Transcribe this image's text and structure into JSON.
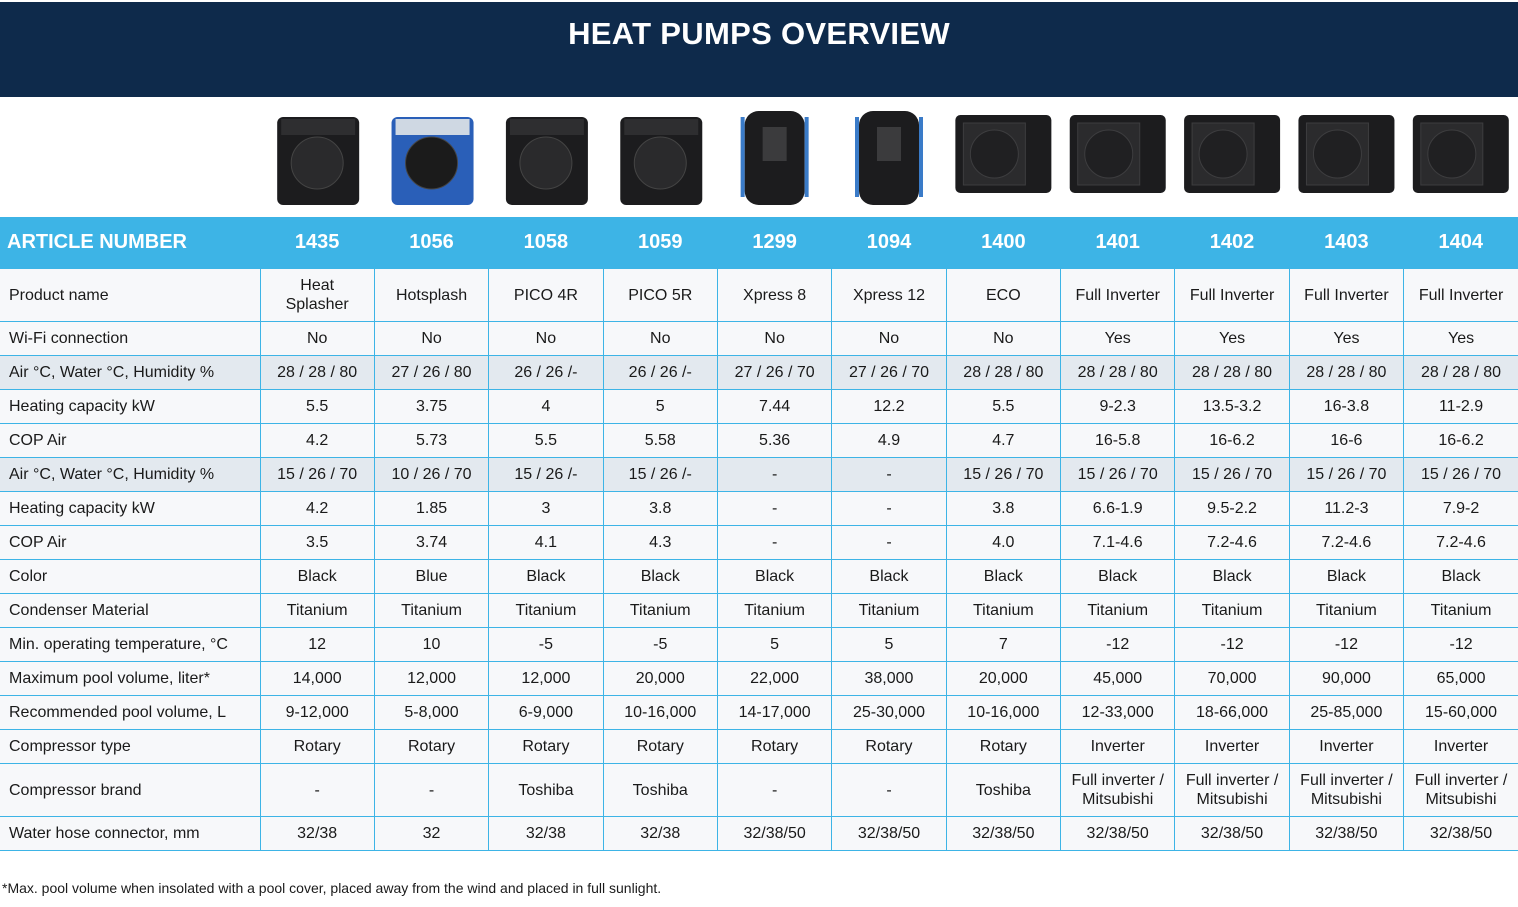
{
  "header": {
    "title": "HEAT PUMPS OVERVIEW"
  },
  "table": {
    "header": [
      "ARTICLE NUMBER",
      "1435",
      "1056",
      "1058",
      "1059",
      "1299",
      "1094",
      "1400",
      "1401",
      "1402",
      "1403",
      "1404"
    ],
    "rows": [
      [
        "Product name",
        "Heat Splasher",
        "Hotsplash",
        "PICO 4R",
        "PICO 5R",
        "Xpress 8",
        "Xpress 12",
        "ECO",
        "Full Inverter",
        "Full Inverter",
        "Full Inverter",
        "Full Inverter"
      ],
      [
        "Wi-Fi connection",
        "No",
        "No",
        "No",
        "No",
        "No",
        "No",
        "No",
        "Yes",
        "Yes",
        "Yes",
        "Yes"
      ],
      [
        "Air °C, Water °C, Humidity %",
        "28 / 28 / 80",
        "27 / 26 / 80",
        "26 / 26 /-",
        "26 / 26 /-",
        "27 / 26 / 70",
        "27 / 26 / 70",
        "28 / 28 / 80",
        "28 / 28 / 80",
        "28 / 28 / 80",
        "28 / 28 / 80",
        "28 / 28 / 80"
      ],
      [
        "Heating capacity kW",
        "5.5",
        "3.75",
        "4",
        "5",
        "7.44",
        "12.2",
        "5.5",
        "9-2.3",
        "13.5-3.2",
        "16-3.8",
        "11-2.9"
      ],
      [
        "COP Air",
        "4.2",
        "5.73",
        "5.5",
        "5.58",
        "5.36",
        "4.9",
        "4.7",
        "16-5.8",
        "16-6.2",
        "16-6",
        "16-6.2"
      ],
      [
        "Air °C, Water °C, Humidity %",
        "15 / 26 / 70",
        "10 / 26 / 70",
        "15 / 26 /-",
        "15 / 26 /-",
        "-",
        "-",
        "15 / 26 / 70",
        "15 / 26 / 70",
        "15 / 26 / 70",
        "15 / 26 / 70",
        "15 / 26 / 70"
      ],
      [
        "Heating capacity kW",
        "4.2",
        "1.85",
        "3",
        "3.8",
        "-",
        "-",
        "3.8",
        "6.6-1.9",
        "9.5-2.2",
        "11.2-3",
        "7.9-2"
      ],
      [
        "COP Air",
        "3.5",
        "3.74",
        "4.1",
        "4.3",
        "-",
        "-",
        "4.0",
        "7.1-4.6",
        "7.2-4.6",
        "7.2-4.6",
        "7.2-4.6"
      ],
      [
        "Color",
        "Black",
        "Blue",
        "Black",
        "Black",
        "Black",
        "Black",
        "Black",
        "Black",
        "Black",
        "Black",
        "Black"
      ],
      [
        "Condenser Material",
        "Titanium",
        "Titanium",
        "Titanium",
        "Titanium",
        "Titanium",
        "Titanium",
        "Titanium",
        "Titanium",
        "Titanium",
        "Titanium",
        "Titanium"
      ],
      [
        "Min. operating temperature, °C",
        "12",
        "10",
        "-5",
        "-5",
        "5",
        "5",
        "7",
        "-12",
        "-12",
        "-12",
        "-12"
      ],
      [
        "Maximum pool volume, liter*",
        "14,000",
        "12,000",
        "12,000",
        "20,000",
        "22,000",
        "38,000",
        "20,000",
        "45,000",
        "70,000",
        "90,000",
        "65,000"
      ],
      [
        "Recommended pool volume, L",
        "9-12,000",
        "5-8,000",
        "6-9,000",
        "10-16,000",
        "14-17,000",
        "25-30,000",
        "10-16,000",
        "12-33,000",
        "18-66,000",
        "25-85,000",
        "15-60,000"
      ],
      [
        "Compressor type",
        "Rotary",
        "Rotary",
        "Rotary",
        "Rotary",
        "Rotary",
        "Rotary",
        "Rotary",
        "Inverter",
        "Inverter",
        "Inverter",
        "Inverter"
      ],
      [
        "Compressor brand",
        "-",
        "-",
        "Toshiba",
        "Toshiba",
        "-",
        "-",
        "Toshiba",
        "Full inverter / Mitsubishi",
        "Full inverter / Mitsubishi",
        "Full inverter / Mitsubishi",
        "Full inverter / Mitsubishi"
      ],
      [
        "Water hose connector, mm",
        "32/38",
        "32",
        "32/38",
        "32/38",
        "32/38/50",
        "32/38/50",
        "32/38/50",
        "32/38/50",
        "32/38/50",
        "32/38/50",
        "32/38/50"
      ]
    ]
  },
  "footnote": "*Max. pool volume when insolated with a pool cover, placed away from the wind and placed in full sunlight."
}
